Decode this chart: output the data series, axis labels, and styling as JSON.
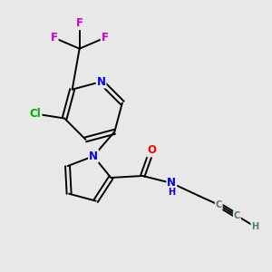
{
  "background_color": "#e8e8e8",
  "bond_color": "#000000",
  "atom_colors": {
    "N": "#0000ff",
    "O": "#ff0000",
    "F": "#cc00cc",
    "Cl": "#00aa00",
    "C": "#4a7a7a",
    "H": "#4a7a7a"
  },
  "lw": 1.4,
  "fs": 8.5,
  "fs_small": 7.0
}
